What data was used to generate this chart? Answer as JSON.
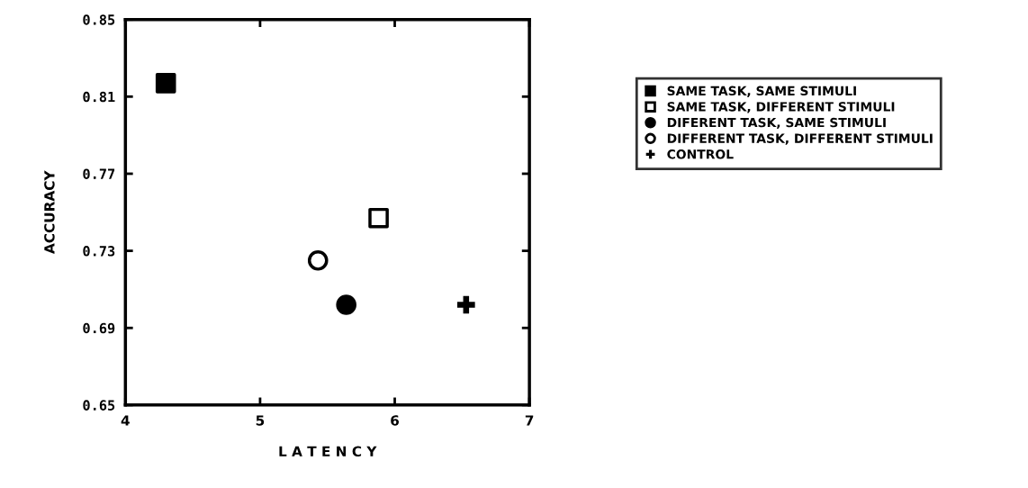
{
  "chart_data": {
    "type": "scatter",
    "xlabel": "L A T E N C Y",
    "ylabel": "ACCURACY",
    "xlim": [
      4,
      7
    ],
    "xticks": [
      4,
      5,
      6,
      7
    ],
    "ylim": [
      0.65,
      0.85
    ],
    "yticks": [
      0.65,
      0.69,
      0.73,
      0.77,
      0.81,
      0.85
    ],
    "grid": false,
    "legend": "right",
    "series": [
      {
        "name": "SAME TASK, SAME STIMULI",
        "color": "#000000",
        "marker": "square",
        "x": [
          4.3
        ],
        "values": [
          0.817
        ]
      },
      {
        "name": "SAME TASK, DIFFERENT STIMULI",
        "color": "#000000",
        "marker": "square",
        "x": [
          5.88
        ],
        "values": [
          0.747
        ]
      },
      {
        "name": "DIFERENT TASK, SAME STIMULI",
        "color": "#000000",
        "marker": "circle",
        "x": [
          5.64
        ],
        "values": [
          0.702
        ]
      },
      {
        "name": "DIFFERENT TASK, DIFFERENT STIMULI",
        "color": "#000000",
        "marker": "circle",
        "x": [
          5.43
        ],
        "values": [
          0.725
        ]
      },
      {
        "name": "CONTROL",
        "color": "#000000",
        "marker": "cross",
        "x": [
          6.53
        ],
        "values": [
          0.702
        ]
      }
    ]
  }
}
